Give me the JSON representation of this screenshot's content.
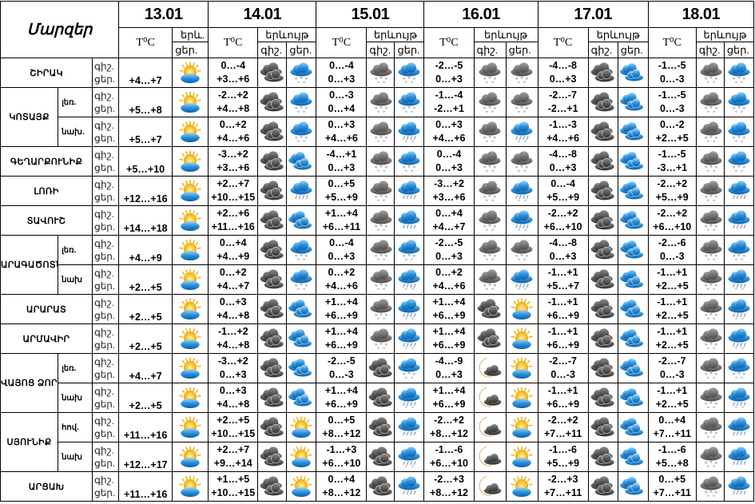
{
  "header": {
    "title": "Մարզեր",
    "dates": [
      "13.01",
      "14.01",
      "15.01",
      "16.01",
      "17.01",
      "18.01"
    ],
    "temp_label": "T⁰C",
    "phenomenon_short": "երև.",
    "phenomenon": "երևույթ",
    "night_short": "գիշ.",
    "day_short": "ցեր."
  },
  "labels": {
    "night_short": "գիշ.",
    "day_short": "ցեր."
  },
  "icon_colors": {
    "sun": "#f7b500",
    "blue_cloud": "#2a8fd8",
    "dark_cloud": "#4a4a4a",
    "moon": "#f0a020"
  },
  "regions": [
    {
      "name": "ՇԻՐԱԿ",
      "d13": {
        "temp": "+4…+7",
        "icon": "partly-sunny"
      },
      "days": [
        {
          "night": "0…-4",
          "day": "+3…+6",
          "icon_night": "dark-clouds",
          "icon_day": "blue-snow"
        },
        {
          "night": "0…-4",
          "day": "0…+3",
          "icon_night": "gray-snow",
          "icon_day": "blue-snow"
        },
        {
          "night": "-2…-5",
          "day": "0…+3",
          "icon_night": "gray-snow",
          "icon_day": "gray-snow"
        },
        {
          "night": "-4…-8",
          "day": "0…+3",
          "icon_night": "dark-clouds",
          "icon_day": "blue-clouds"
        },
        {
          "night": "-1…-5",
          "day": "0…-3",
          "icon_night": "gray-snow",
          "icon_day": "blue-snow"
        }
      ]
    },
    {
      "name": "ԿՈՏԱՅՔ",
      "subregions": [
        {
          "label": "լեռ.",
          "d13": {
            "temp": "+5…+8",
            "icon": "partly-sunny"
          },
          "days": [
            {
              "night": "-2…+2",
              "day": "+4…+8",
              "icon_night": "dark-clouds",
              "icon_day": "blue-snow"
            },
            {
              "night": "0…-3",
              "day": "0…+4",
              "icon_night": "gray-snow",
              "icon_day": "blue-snow"
            },
            {
              "night": "-1…-4",
              "day": "-2…+1",
              "icon_night": "gray-snow",
              "icon_day": "gray-snow"
            },
            {
              "night": "-2…-7",
              "day": "-2…+1",
              "icon_night": "dark-clouds",
              "icon_day": "blue-clouds"
            },
            {
              "night": "-1…-5",
              "day": "0…-3",
              "icon_night": "gray-snow",
              "icon_day": "blue-snow"
            }
          ]
        },
        {
          "label": "նախ.",
          "d13": {
            "temp": "+5…+7",
            "icon": "partly-sunny"
          },
          "days": [
            {
              "night": "0…+2",
              "day": "+4…+6",
              "icon_night": "dark-clouds",
              "icon_day": "blue-snow"
            },
            {
              "night": "0…+3",
              "day": "+4…+6",
              "icon_night": "gray-snow",
              "icon_day": "blue-sleet"
            },
            {
              "night": "0…+3",
              "day": "+4…+6",
              "icon_night": "gray-snow",
              "icon_day": "blue-sleet"
            },
            {
              "night": "-1…-3",
              "day": "+4…+6",
              "icon_night": "dark-clouds",
              "icon_day": "blue-clouds"
            },
            {
              "night": "0…-2",
              "day": "+2…+5",
              "icon_night": "gray-snow",
              "icon_day": "blue-snow"
            }
          ]
        }
      ]
    },
    {
      "name": "ԳԵՂԱՐՔՈՒՆԻՔ",
      "d13": {
        "temp": "+5…+10",
        "icon": "partly-sunny"
      },
      "days": [
        {
          "night": "-3…+2",
          "day": "+3…+6",
          "icon_night": "dark-clouds",
          "icon_day": "blue-clouds"
        },
        {
          "night": "-4…+1",
          "day": "0…+3",
          "icon_night": "gray-snow",
          "icon_day": "blue-snow"
        },
        {
          "night": "0…-4",
          "day": "0…+3",
          "icon_night": "gray-snow",
          "icon_day": "gray-snow"
        },
        {
          "night": "-4…-8",
          "day": "0…+3",
          "icon_night": "dark-clouds",
          "icon_day": "blue-clouds"
        },
        {
          "night": "-1…-5",
          "day": "-3…+1",
          "icon_night": "gray-snow",
          "icon_day": "blue-snow"
        }
      ]
    },
    {
      "name": "ԼՈՌԻ",
      "d13": {
        "temp": "+12…+16",
        "icon": "partly-sunny"
      },
      "days": [
        {
          "night": "+2…+7",
          "day": "+10…+15",
          "icon_night": "dark-clouds",
          "icon_day": "blue-rain"
        },
        {
          "night": "0…+5",
          "day": "+5…+9",
          "icon_night": "gray-snow",
          "icon_day": "blue-rain"
        },
        {
          "night": "-3…+2",
          "day": "+3…+6",
          "icon_night": "gray-snow",
          "icon_day": "blue-sleet"
        },
        {
          "night": "0…-4",
          "day": "+5…+9",
          "icon_night": "dark-clouds",
          "icon_day": "blue-clouds"
        },
        {
          "night": "-2…+2",
          "day": "+5…+9",
          "icon_night": "gray-snow",
          "icon_day": "blue-rain"
        }
      ]
    },
    {
      "name": "ՏԱՎՈՒՇ",
      "d13": {
        "temp": "+14…+18",
        "icon": "partly-sunny"
      },
      "days": [
        {
          "night": "+2…+6",
          "day": "+11…+16",
          "icon_night": "dark-clouds",
          "icon_day": "blue-clouds"
        },
        {
          "night": "+1…+4",
          "day": "+6…+11",
          "icon_night": "gray-snow",
          "icon_day": "blue-rain"
        },
        {
          "night": "0…+4",
          "day": "+4…+7",
          "icon_night": "gray-snow",
          "icon_day": "blue-sleet"
        },
        {
          "night": "-2…+2",
          "day": "+6…+10",
          "icon_night": "dark-clouds",
          "icon_day": "blue-clouds"
        },
        {
          "night": "-2…+2",
          "day": "+6…+10",
          "icon_night": "gray-snow",
          "icon_day": "blue-rain"
        }
      ]
    },
    {
      "name": "ԱՐԱԳԱԾՈՏՆ",
      "subregions": [
        {
          "label": "լեռ.",
          "d13": {
            "temp": "+4…+9",
            "icon": "partly-sunny"
          },
          "days": [
            {
              "night": "0…+4",
              "day": "+4…+9",
              "icon_night": "dark-clouds",
              "icon_day": "blue-snow"
            },
            {
              "night": "0…-4",
              "day": "0…+3",
              "icon_night": "gray-snow",
              "icon_day": "blue-snow"
            },
            {
              "night": "-2…-5",
              "day": "0…+3",
              "icon_night": "gray-snow",
              "icon_day": "gray-snow"
            },
            {
              "night": "-4…-8",
              "day": "0…+3",
              "icon_night": "dark-clouds",
              "icon_day": "blue-clouds"
            },
            {
              "night": "-2…-6",
              "day": "0…-3",
              "icon_night": "gray-snow",
              "icon_day": "blue-snow"
            }
          ]
        },
        {
          "label": "նախ",
          "d13": {
            "temp": "+2…+5",
            "icon": "partly-sunny"
          },
          "days": [
            {
              "night": "0…+2",
              "day": "+4…+7",
              "icon_night": "dark-clouds",
              "icon_day": "blue-snow"
            },
            {
              "night": "0…+2",
              "day": "+4…+6",
              "icon_night": "gray-snow",
              "icon_day": "blue-sleet"
            },
            {
              "night": "0…+2",
              "day": "+4…+6",
              "icon_night": "gray-snow",
              "icon_day": "blue-sleet"
            },
            {
              "night": "-1…+1",
              "day": "+5…+7",
              "icon_night": "dark-clouds",
              "icon_day": "blue-clouds"
            },
            {
              "night": "-1…+1",
              "day": "+2…+5",
              "icon_night": "gray-snow",
              "icon_day": "blue-sleet"
            }
          ]
        }
      ]
    },
    {
      "name": "ԱՐԱՐԱՏ",
      "d13": {
        "temp": "+2…+5",
        "icon": "partly-sunny"
      },
      "days": [
        {
          "night": "0…+3",
          "day": "+4…+8",
          "icon_night": "dark-clouds",
          "icon_day": "blue-clouds"
        },
        {
          "night": "+1…+4",
          "day": "+6…+9",
          "icon_night": "gray-snow",
          "icon_day": "blue-sleet"
        },
        {
          "night": "+1…+4",
          "day": "+6…+9",
          "icon_night": "dark-clouds",
          "icon_day": "partly-sunny"
        },
        {
          "night": "-1…+1",
          "day": "+6…+9",
          "icon_night": "dark-clouds",
          "icon_day": "blue-clouds"
        },
        {
          "night": "-1…+1",
          "day": "+2…+5",
          "icon_night": "gray-snow",
          "icon_day": "blue-sleet"
        }
      ]
    },
    {
      "name": "ԱՐՄԱՎԻՐ",
      "d13": {
        "temp": "+2…+5",
        "icon": "partly-sunny"
      },
      "days": [
        {
          "night": "-1…+2",
          "day": "+4…+8",
          "icon_night": "dark-clouds",
          "icon_day": "blue-clouds"
        },
        {
          "night": "+1…+4",
          "day": "+6…+9",
          "icon_night": "gray-snow",
          "icon_day": "blue-sleet"
        },
        {
          "night": "+1…+4",
          "day": "+6…+9",
          "icon_night": "dark-clouds",
          "icon_day": "partly-sunny"
        },
        {
          "night": "-1…+1",
          "day": "+6…+9",
          "icon_night": "dark-clouds",
          "icon_day": "blue-clouds"
        },
        {
          "night": "-1…+1",
          "day": "+2…+5",
          "icon_night": "gray-snow",
          "icon_day": "blue-sleet"
        }
      ]
    },
    {
      "name": "ՎԱՅՈՑ ՁՈՐ",
      "subregions": [
        {
          "label": "լեռ.",
          "d13": {
            "temp": "+4…+7",
            "icon": "partly-sunny"
          },
          "days": [
            {
              "night": "-3…+2",
              "day": "0…+3",
              "icon_night": "dark-clouds",
              "icon_day": "blue-clouds"
            },
            {
              "night": "-2…-5",
              "day": "0…-3",
              "icon_night": "dark-clouds",
              "icon_day": "blue-snow"
            },
            {
              "night": "-4…-9",
              "day": "0…+3",
              "icon_night": "moon-cloud",
              "icon_day": "partly-sunny"
            },
            {
              "night": "-2…-7",
              "day": "0…-3",
              "icon_night": "dark-clouds",
              "icon_day": "blue-clouds"
            },
            {
              "night": "-2…-7",
              "day": "0…-3",
              "icon_night": "gray-snow",
              "icon_day": "blue-snow"
            }
          ]
        },
        {
          "label": "նախ",
          "d13": {
            "temp": "+2…+5",
            "icon": "partly-sunny"
          },
          "days": [
            {
              "night": "0…+3",
              "day": "+4…+8",
              "icon_night": "dark-clouds",
              "icon_day": "blue-clouds"
            },
            {
              "night": "+1…+4",
              "day": "+6…+9",
              "icon_night": "dark-clouds",
              "icon_day": "blue-sleet"
            },
            {
              "night": "+1…+4",
              "day": "+6…+9",
              "icon_night": "moon-cloud",
              "icon_day": "partly-sunny"
            },
            {
              "night": "-1…+1",
              "day": "+6…+9",
              "icon_night": "dark-clouds",
              "icon_day": "blue-clouds"
            },
            {
              "night": "-1…+1",
              "day": "+2…+5",
              "icon_night": "gray-snow",
              "icon_day": "blue-sleet"
            }
          ]
        }
      ]
    },
    {
      "name": "ՍՅՈՒՆԻՔ",
      "subregions": [
        {
          "label": "հով.",
          "d13": {
            "temp": "+11…+16",
            "icon": "partly-sunny"
          },
          "days": [
            {
              "night": "+2…+5",
              "day": "+10…+15",
              "icon_night": "dark-clouds",
              "icon_day": "partly-sunny"
            },
            {
              "night": "0…+5",
              "day": "+8…+12",
              "icon_night": "dark-clouds",
              "icon_day": "blue-rain"
            },
            {
              "night": "-2…+2",
              "day": "+8…+12",
              "icon_night": "moon-cloud",
              "icon_day": "partly-sunny"
            },
            {
              "night": "-2…+2",
              "day": "+7…+11",
              "icon_night": "dark-clouds",
              "icon_day": "blue-clouds"
            },
            {
              "night": "0…+4",
              "day": "+7…+11",
              "icon_night": "gray-snow",
              "icon_day": "blue-rain"
            }
          ]
        },
        {
          "label": "նախ",
          "d13": {
            "temp": "+12…+17",
            "icon": "partly-sunny"
          },
          "days": [
            {
              "night": "+2…+7",
              "day": "+9…+14",
              "icon_night": "dark-clouds",
              "icon_day": "partly-sunny"
            },
            {
              "night": "-1…+3",
              "day": "+6…+10",
              "icon_night": "dark-clouds",
              "icon_day": "blue-sleet"
            },
            {
              "night": "-1…-6",
              "day": "+6…+10",
              "icon_night": "moon-cloud",
              "icon_day": "partly-sunny"
            },
            {
              "night": "-1…-6",
              "day": "+5…+9",
              "icon_night": "dark-clouds",
              "icon_day": "blue-clouds"
            },
            {
              "night": "-1…-6",
              "day": "+5…+8",
              "icon_night": "gray-snow",
              "icon_day": "blue-rain"
            }
          ]
        }
      ]
    },
    {
      "name": "ԱՐՑԱԽ",
      "d13": {
        "temp": "+11…+16",
        "icon": "partly-sunny"
      },
      "days": [
        {
          "night": "+1…+5",
          "day": "+10…+15",
          "icon_night": "dark-clouds",
          "icon_day": "partly-sunny"
        },
        {
          "night": "0…+4",
          "day": "+8…+12",
          "icon_night": "dark-clouds",
          "icon_day": "blue-rain"
        },
        {
          "night": "-2…+3",
          "day": "+8…+12",
          "icon_night": "moon-cloud",
          "icon_day": "partly-sunny"
        },
        {
          "night": "-2…+3",
          "day": "+7…+11",
          "icon_night": "dark-clouds",
          "icon_day": "blue-clouds"
        },
        {
          "night": "0…+5",
          "day": "+7…+11",
          "icon_night": "gray-snow",
          "icon_day": "blue-rain"
        }
      ]
    }
  ]
}
